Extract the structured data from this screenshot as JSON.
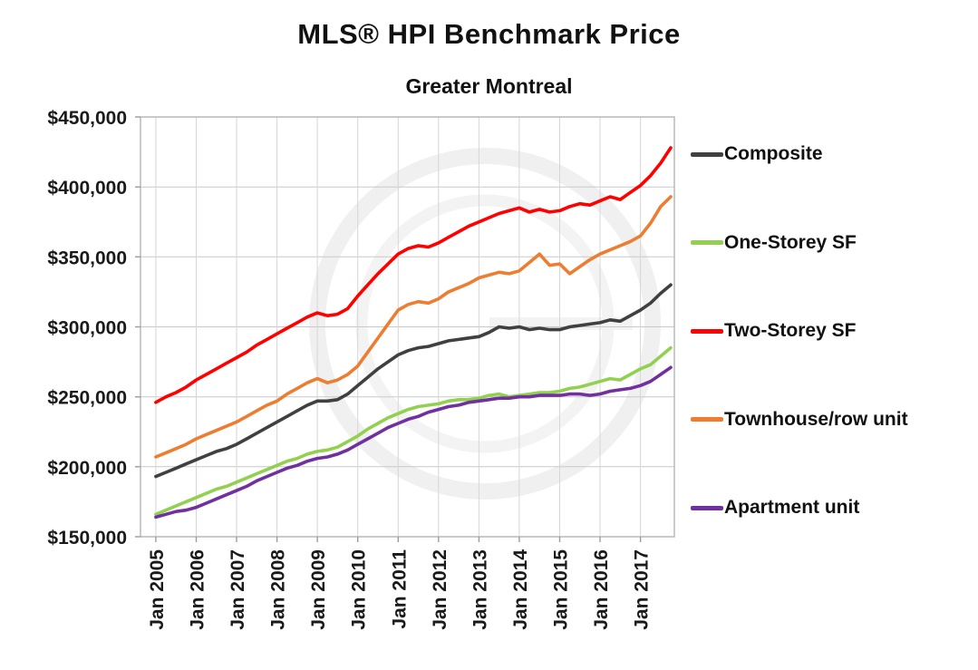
{
  "chart_data": {
    "type": "line",
    "title": "MLS® HPI Benchmark Price",
    "subtitle": "Greater Montreal",
    "xlabel": "",
    "ylabel": "",
    "ylim": [
      150000,
      450000
    ],
    "grid": true,
    "legend_position": "right",
    "watermark": "faint-circular-logo",
    "y_ticks": [
      150000,
      200000,
      250000,
      300000,
      350000,
      400000,
      450000
    ],
    "y_tick_labels": [
      "$150,000",
      "$200,000",
      "$250,000",
      "$300,000",
      "$350,000",
      "$400,000",
      "$450,000"
    ],
    "x_ticks": [
      2005,
      2006,
      2007,
      2008,
      2009,
      2010,
      2011,
      2012,
      2013,
      2014,
      2015,
      2016,
      2017
    ],
    "x_tick_labels": [
      "Jan 2005",
      "Jan 2006",
      "Jan 2007",
      "Jan 2008",
      "Jan 2009",
      "Jan 2010",
      "Jan 2011",
      "Jan 2012",
      "Jan 2013",
      "Jan 2014",
      "Jan 2015",
      "Jan 2016",
      "Jan 2017"
    ],
    "x": [
      2005.0,
      2005.25,
      2005.5,
      2005.75,
      2006.0,
      2006.25,
      2006.5,
      2006.75,
      2007.0,
      2007.25,
      2007.5,
      2007.75,
      2008.0,
      2008.25,
      2008.5,
      2008.75,
      2009.0,
      2009.25,
      2009.5,
      2009.75,
      2010.0,
      2010.25,
      2010.5,
      2010.75,
      2011.0,
      2011.25,
      2011.5,
      2011.75,
      2012.0,
      2012.25,
      2012.5,
      2012.75,
      2013.0,
      2013.25,
      2013.5,
      2013.75,
      2014.0,
      2014.25,
      2014.5,
      2014.75,
      2015.0,
      2015.25,
      2015.5,
      2015.75,
      2016.0,
      2016.25,
      2016.5,
      2016.75,
      2017.0,
      2017.25,
      2017.5,
      2017.75
    ],
    "series": [
      {
        "name": "Composite",
        "color": "#404040",
        "values": [
          193000,
          196000,
          199000,
          202000,
          205000,
          208000,
          211000,
          213000,
          216000,
          220000,
          224000,
          228000,
          232000,
          236000,
          240000,
          244000,
          247000,
          247000,
          248000,
          252000,
          258000,
          264000,
          270000,
          275000,
          280000,
          283000,
          285000,
          286000,
          288000,
          290000,
          291000,
          292000,
          293000,
          296000,
          300000,
          299000,
          300000,
          298000,
          299000,
          298000,
          298000,
          300000,
          301000,
          302000,
          303000,
          305000,
          304000,
          308000,
          312000,
          317000,
          324000,
          330000
        ]
      },
      {
        "name": "One-Storey SF",
        "color": "#92d050",
        "values": [
          166000,
          169000,
          172000,
          175000,
          178000,
          181000,
          184000,
          186000,
          189000,
          192000,
          195000,
          198000,
          201000,
          204000,
          206000,
          209000,
          211000,
          212000,
          214000,
          218000,
          222000,
          227000,
          231000,
          235000,
          238000,
          241000,
          243000,
          244000,
          245000,
          247000,
          248000,
          248000,
          249000,
          251000,
          252000,
          250000,
          251000,
          252000,
          253000,
          253000,
          254000,
          256000,
          257000,
          259000,
          261000,
          263000,
          262000,
          266000,
          270000,
          273000,
          279000,
          285000
        ]
      },
      {
        "name": "Two-Storey SF",
        "color": "#ff0000",
        "values": [
          246000,
          250000,
          253000,
          257000,
          262000,
          266000,
          270000,
          274000,
          278000,
          282000,
          287000,
          291000,
          295000,
          299000,
          303000,
          307000,
          310000,
          308000,
          309000,
          313000,
          322000,
          330000,
          338000,
          345000,
          352000,
          356000,
          358000,
          357000,
          360000,
          364000,
          368000,
          372000,
          375000,
          378000,
          381000,
          383000,
          385000,
          382000,
          384000,
          382000,
          383000,
          386000,
          388000,
          387000,
          390000,
          393000,
          391000,
          396000,
          401000,
          408000,
          417000,
          428000
        ]
      },
      {
        "name": "Townhouse/row unit",
        "color": "#ed7d31",
        "values": [
          207000,
          210000,
          213000,
          216000,
          220000,
          223000,
          226000,
          229000,
          232000,
          236000,
          240000,
          244000,
          247000,
          252000,
          256000,
          260000,
          263000,
          260000,
          262000,
          266000,
          272000,
          282000,
          292000,
          302000,
          312000,
          316000,
          318000,
          317000,
          320000,
          325000,
          328000,
          331000,
          335000,
          337000,
          339000,
          338000,
          340000,
          346000,
          352000,
          344000,
          345000,
          338000,
          343000,
          348000,
          352000,
          355000,
          358000,
          361000,
          365000,
          374000,
          386000,
          393000
        ]
      },
      {
        "name": "Apartment unit",
        "color": "#7030a0",
        "values": [
          164000,
          166000,
          168000,
          169000,
          171000,
          174000,
          177000,
          180000,
          183000,
          186000,
          190000,
          193000,
          196000,
          199000,
          201000,
          204000,
          206000,
          207000,
          209000,
          212000,
          216000,
          220000,
          224000,
          228000,
          231000,
          234000,
          236000,
          239000,
          241000,
          243000,
          244000,
          246000,
          247000,
          248000,
          249000,
          249000,
          250000,
          250000,
          251000,
          251000,
          251000,
          252000,
          252000,
          251000,
          252000,
          254000,
          255000,
          256000,
          258000,
          261000,
          266000,
          271000
        ]
      }
    ]
  }
}
